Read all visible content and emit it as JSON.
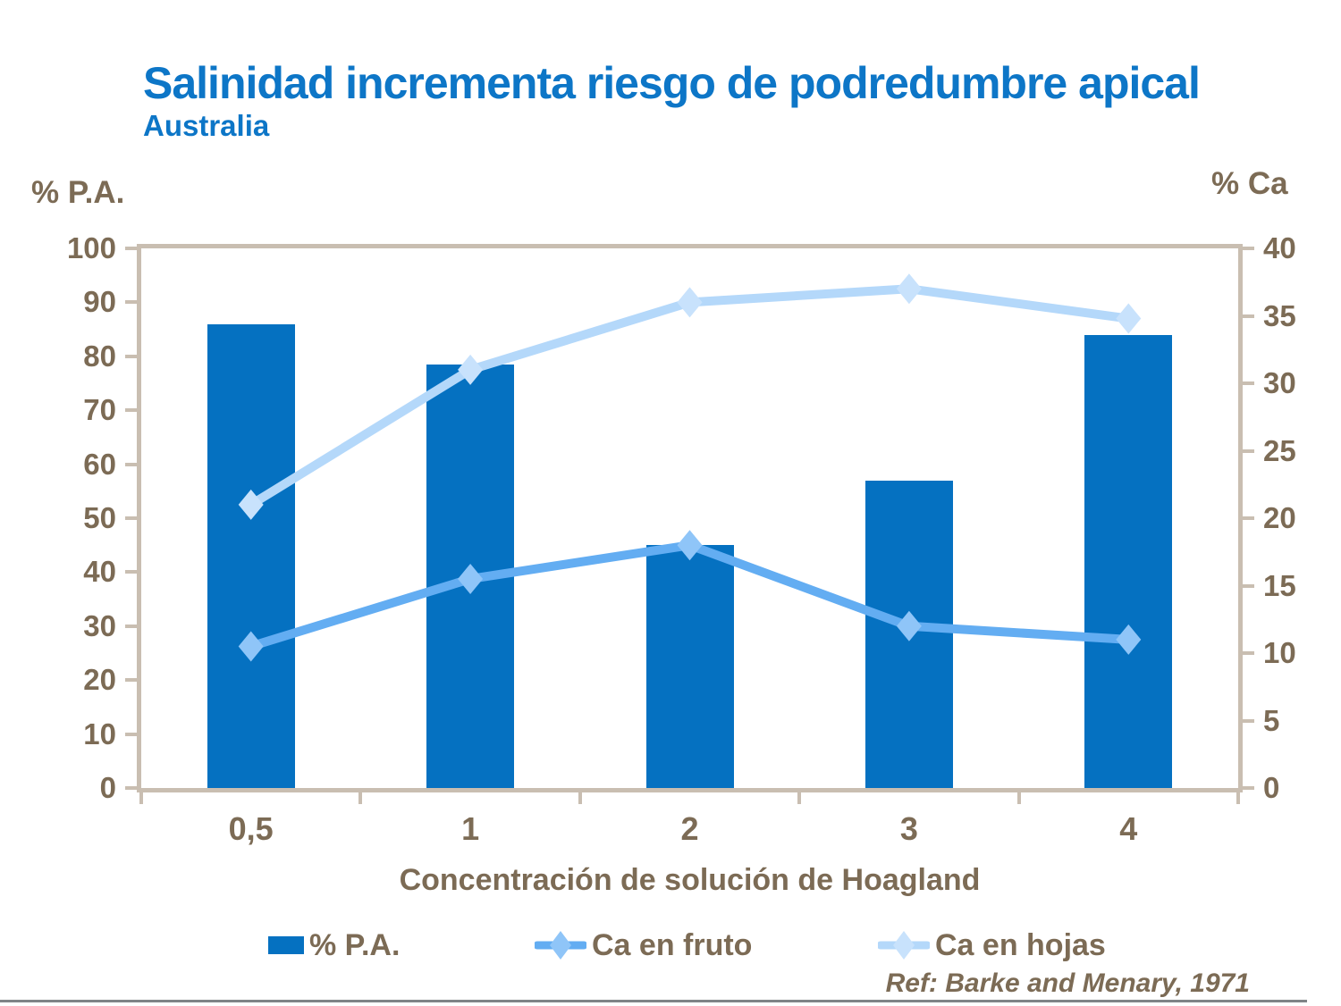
{
  "slide": {
    "title": "Salinidad incrementa riesgo de podredumbre apical",
    "subtitle": "Australia",
    "reference": "Ref: Barke and Menary, 1971"
  },
  "chart_data": {
    "type": "bar+line",
    "categories": [
      "0,5",
      "1",
      "2",
      "3",
      "4"
    ],
    "x_axis_title": "Concentración de solución de Hoagland",
    "left_axis": {
      "title": "% P.A.",
      "min": 0,
      "max": 100,
      "tick_step": 10,
      "ticks": [
        0,
        10,
        20,
        30,
        40,
        50,
        60,
        70,
        80,
        90,
        100
      ]
    },
    "right_axis": {
      "title": "% Ca",
      "min": 0,
      "max": 40,
      "tick_step": 5,
      "ticks": [
        0,
        5,
        10,
        15,
        20,
        25,
        30,
        35,
        40
      ]
    },
    "series": [
      {
        "name": "% P.A.",
        "type": "bar",
        "axis": "left",
        "color": "#0571C1",
        "values": [
          86,
          78.5,
          45,
          57,
          84
        ]
      },
      {
        "name": "Ca en fruto",
        "type": "line",
        "axis": "right",
        "color": "#63ADF2",
        "marker_color": "#8FC5F8",
        "marker": "diamond",
        "values": [
          10.5,
          15.5,
          18,
          12,
          11
        ]
      },
      {
        "name": "Ca en hojas",
        "type": "line",
        "axis": "right",
        "color": "#B4D8FA",
        "marker_color": "#C8E2FC",
        "marker": "diamond",
        "values": [
          21,
          31,
          36,
          37,
          34.8
        ]
      }
    ],
    "legend_position": "bottom",
    "grid": false
  },
  "colors": {
    "title_blue": "#0D76C7",
    "text_brown": "#7C6B55",
    "frame_beige": "#C9BEB1",
    "background": "#FFFFFF",
    "divider_gray": "#7F8487"
  }
}
